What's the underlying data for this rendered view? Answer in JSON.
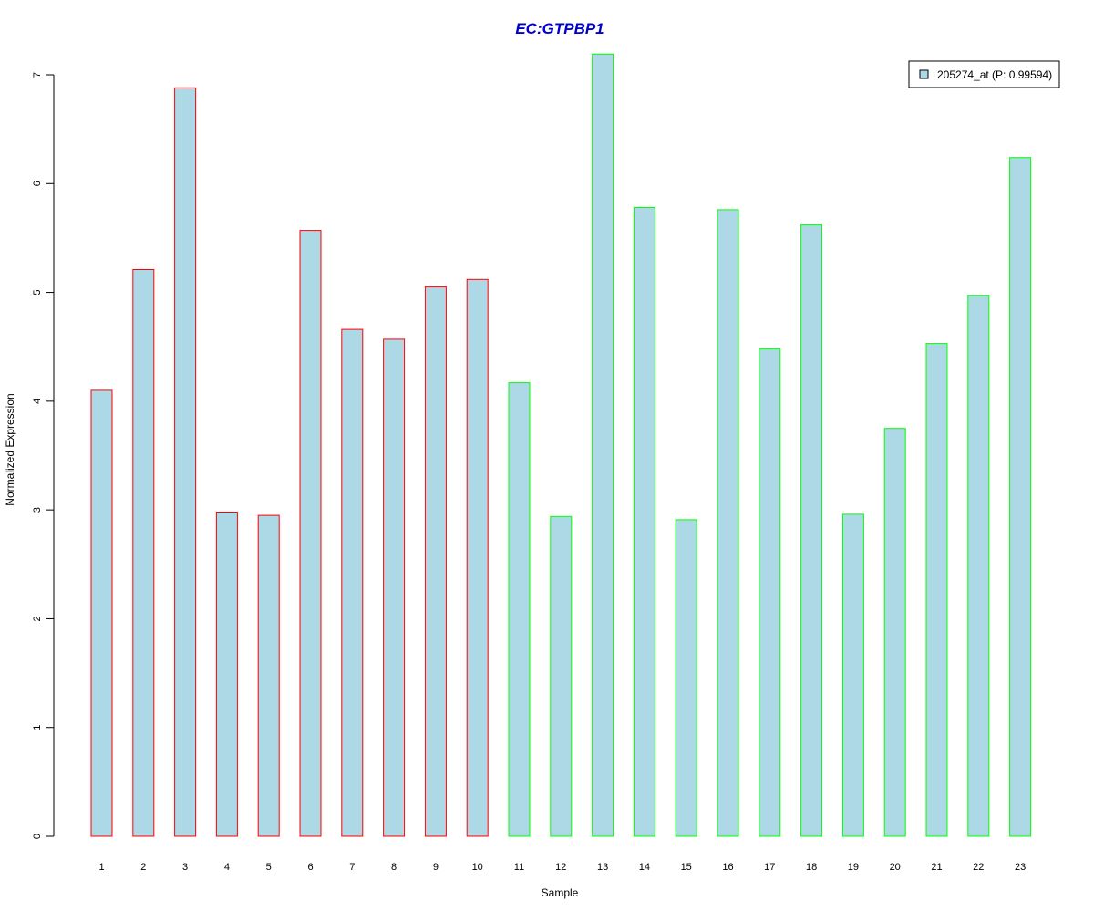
{
  "chart_data": {
    "type": "bar",
    "title": "EC:GTPBP1",
    "xlabel": "Sample",
    "ylabel": "Normalized Expression",
    "categories": [
      "1",
      "2",
      "3",
      "4",
      "5",
      "6",
      "7",
      "8",
      "9",
      "10",
      "11",
      "12",
      "13",
      "14",
      "15",
      "16",
      "17",
      "18",
      "19",
      "20",
      "21",
      "22",
      "23"
    ],
    "series": [
      {
        "name": "205274_at (P: 0.99594)",
        "values": [
          4.1,
          5.21,
          6.88,
          2.98,
          2.95,
          5.57,
          4.66,
          4.57,
          5.05,
          5.12,
          4.17,
          2.94,
          7.19,
          5.78,
          2.91,
          5.76,
          4.48,
          5.62,
          2.96,
          3.75,
          4.53,
          4.97,
          6.24
        ]
      }
    ],
    "bar_groups": [
      1,
      1,
      1,
      1,
      1,
      1,
      1,
      1,
      1,
      1,
      2,
      2,
      2,
      2,
      2,
      2,
      2,
      2,
      2,
      2,
      2,
      2,
      2
    ],
    "group_colors": {
      "1": "#ff0000",
      "2": "#00ff00"
    },
    "fill_color": "#add8e6",
    "title_color": "#0000cd",
    "yticks": [
      0,
      1,
      2,
      3,
      4,
      5,
      6,
      7
    ],
    "ylim": [
      0,
      7.2
    ],
    "legend_position": "top-right",
    "grid": false
  }
}
